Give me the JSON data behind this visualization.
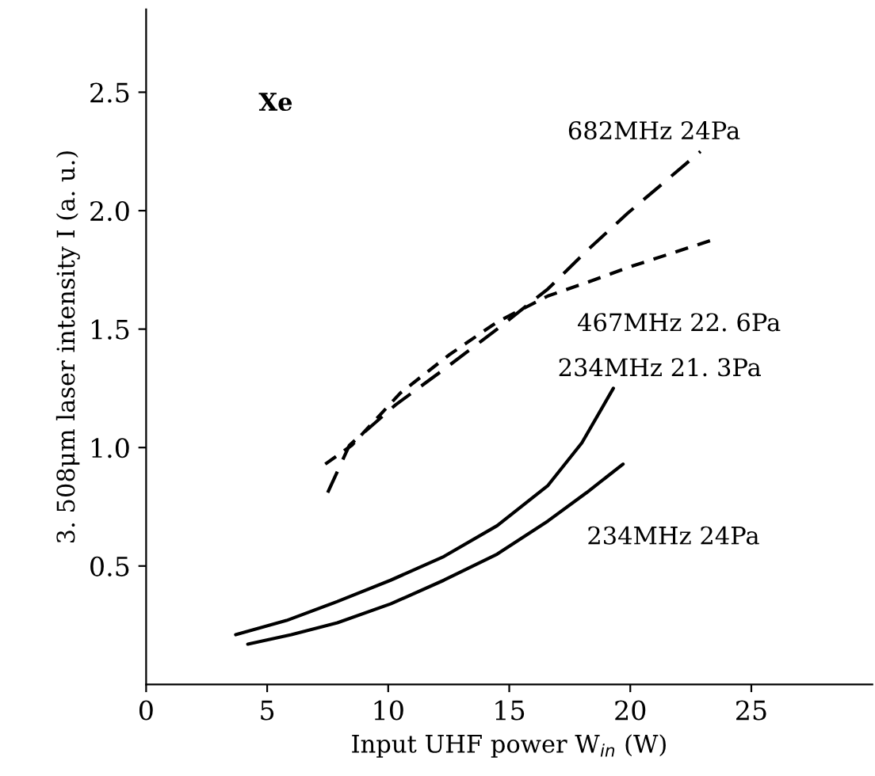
{
  "chart_data": {
    "type": "line",
    "xlabel": "Input UHF power W$_{in}$ (W)",
    "ylabel": "3. 508μm laser intensity I (a. u.)",
    "xlim": [
      0,
      30
    ],
    "ylim": [
      0,
      2.85
    ],
    "xticks": [
      0,
      5,
      10,
      15,
      20,
      25
    ],
    "yticks": [
      0.5,
      {
        "value": 1,
        "label": "1.0"
      },
      1.5,
      {
        "value": 2,
        "label": "2.0"
      },
      2.5
    ],
    "grid": false,
    "legend": false,
    "annotations": [
      "Xe"
    ],
    "series": [
      {
        "name": "682MHz 24Pa",
        "color": "#000000",
        "line_style": "dashed",
        "x": [
          7.5,
          8.4,
          10.3,
          12.3,
          14.5,
          16.6,
          18.3,
          19.9,
          21.4,
          22.9
        ],
        "values": [
          0.81,
          1.01,
          1.18,
          1.33,
          1.5,
          1.67,
          1.84,
          1.99,
          2.12,
          2.25
        ]
      },
      {
        "name": "467MHz 22. 6Pa",
        "color": "#000000",
        "line_style": "dashed",
        "x": [
          7.4,
          8.5,
          10.5,
          12.5,
          14.5,
          16.6,
          18.3,
          19.9,
          21.7,
          23.5
        ],
        "values": [
          0.93,
          1.01,
          1.23,
          1.39,
          1.53,
          1.64,
          1.7,
          1.76,
          1.82,
          1.88
        ]
      },
      {
        "name": "234MHz 21. 3Pa",
        "color": "#000000",
        "line_style": "solid",
        "x": [
          3.7,
          5.8,
          7.9,
          10.1,
          12.3,
          14.5,
          16.6,
          18.0,
          19.3
        ],
        "values": [
          0.21,
          0.27,
          0.35,
          0.44,
          0.54,
          0.67,
          0.84,
          1.02,
          1.25
        ]
      },
      {
        "name": "234MHz 24Pa",
        "color": "#000000",
        "line_style": "solid",
        "x": [
          4.2,
          6.0,
          7.9,
          10.1,
          12.3,
          14.5,
          16.6,
          18.2,
          19.7
        ],
        "values": [
          0.17,
          0.21,
          0.26,
          0.34,
          0.44,
          0.55,
          0.69,
          0.81,
          0.93
        ]
      }
    ]
  }
}
